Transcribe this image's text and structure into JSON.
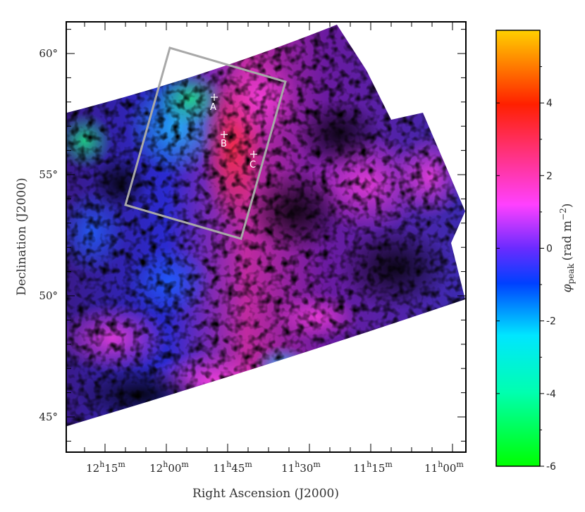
{
  "chart_data": {
    "type": "heatmap",
    "description_axis": {
      "xlabel": "Right Ascension (J2000)",
      "ylabel": "Declination (J2000)"
    },
    "x_ticks": [
      {
        "h": "12",
        "m": "15"
      },
      {
        "h": "12",
        "m": "00"
      },
      {
        "h": "11",
        "m": "45"
      },
      {
        "h": "11",
        "m": "30"
      },
      {
        "h": "11",
        "m": "15"
      },
      {
        "h": "11",
        "m": "00"
      }
    ],
    "y_ticks": [
      "60°",
      "55°",
      "50°",
      "45°"
    ],
    "y_tick_values": [
      60,
      55,
      50,
      45
    ],
    "colorbar": {
      "label_main": "φ",
      "label_sub": "peak",
      "label_unit": "(rad m",
      "label_exp": "−2",
      "label_close": ")",
      "range": [
        -6,
        6
      ],
      "ticks": [
        "4",
        "2",
        "0",
        "-2",
        "-4",
        "-6"
      ],
      "tick_values": [
        4,
        2,
        0,
        -2,
        -4,
        -6
      ],
      "colors": [
        "#00ff00",
        "#00ffff",
        "#0000ff",
        "#ff00ff",
        "#ff0000",
        "#ffff00"
      ]
    },
    "markers": [
      {
        "label": "A"
      },
      {
        "label": "B"
      },
      {
        "label": "C"
      }
    ]
  }
}
